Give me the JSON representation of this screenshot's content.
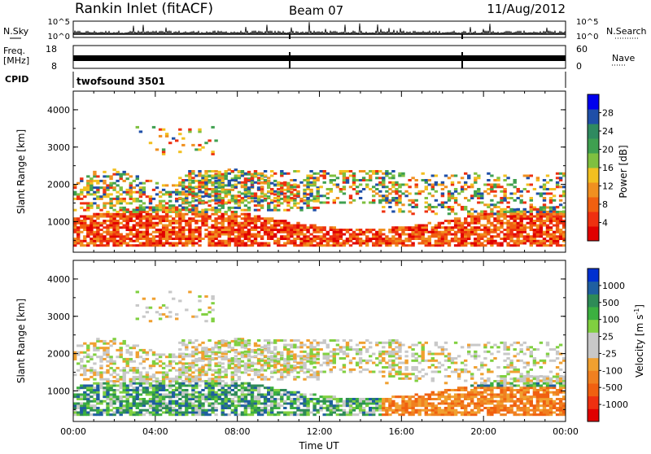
{
  "header": {
    "title": "Rankin Inlet (fitACF)",
    "beam": "Beam 07",
    "date": "11/Aug/2012"
  },
  "top_panels": {
    "nsky_label": "N.Sky",
    "nsky_ticks": [
      "10^5",
      "10^0"
    ],
    "nsearch_label": "N.Search",
    "nsearch_ticks": [
      "10^5",
      "10^0"
    ],
    "freq_label": "Freq.",
    "freq_unit": "[MHz]",
    "freq_ticks": [
      "18",
      "8"
    ],
    "nave_label": "Nave",
    "nave_ticks": [
      "60",
      "0"
    ],
    "cpid_label": "CPID",
    "cpid_value": "twofsound 3501"
  },
  "chart_data": [
    {
      "type": "heatmap",
      "name": "power-panel",
      "ylabel": "Slant Range [km]",
      "yticks": [
        1000,
        2000,
        3000,
        4000
      ],
      "ylim": [
        180,
        4500
      ],
      "xlim": [
        0,
        24
      ],
      "colorbar": {
        "label": "Power [dB]",
        "ticks": [
          "4",
          "8",
          "12",
          "16",
          "20",
          "24",
          "28"
        ],
        "colors": [
          "#0000ee",
          "#1f4fa8",
          "#2f8a60",
          "#3fa050",
          "#7fc040",
          "#f2c020",
          "#f09020",
          "#f06010",
          "#ee3010",
          "#e00000"
        ]
      }
    },
    {
      "type": "heatmap",
      "name": "velocity-panel",
      "ylabel": "Slant Range [km]",
      "yticks": [
        1000,
        2000,
        3000,
        4000
      ],
      "ylim": [
        180,
        4500
      ],
      "xlim": [
        0,
        24
      ],
      "xticks": [
        "00:00",
        "04:00",
        "08:00",
        "12:00",
        "16:00",
        "20:00",
        "00:00"
      ],
      "xlabel": "Time UT",
      "colorbar": {
        "label": "Velocity [m s",
        "label_sup": "-1",
        "label_end": "]",
        "ticks": [
          "1000",
          "500",
          "100",
          "25",
          "-25",
          "-100",
          "-500",
          "-1000"
        ],
        "colors": [
          "#0030d0",
          "#1f5fa0",
          "#2e8b57",
          "#3cb040",
          "#80d040",
          "#c8c8c8",
          "#c8c8c8",
          "#f0a030",
          "#f08020",
          "#f06010",
          "#ee3010",
          "#e00000"
        ]
      }
    }
  ]
}
